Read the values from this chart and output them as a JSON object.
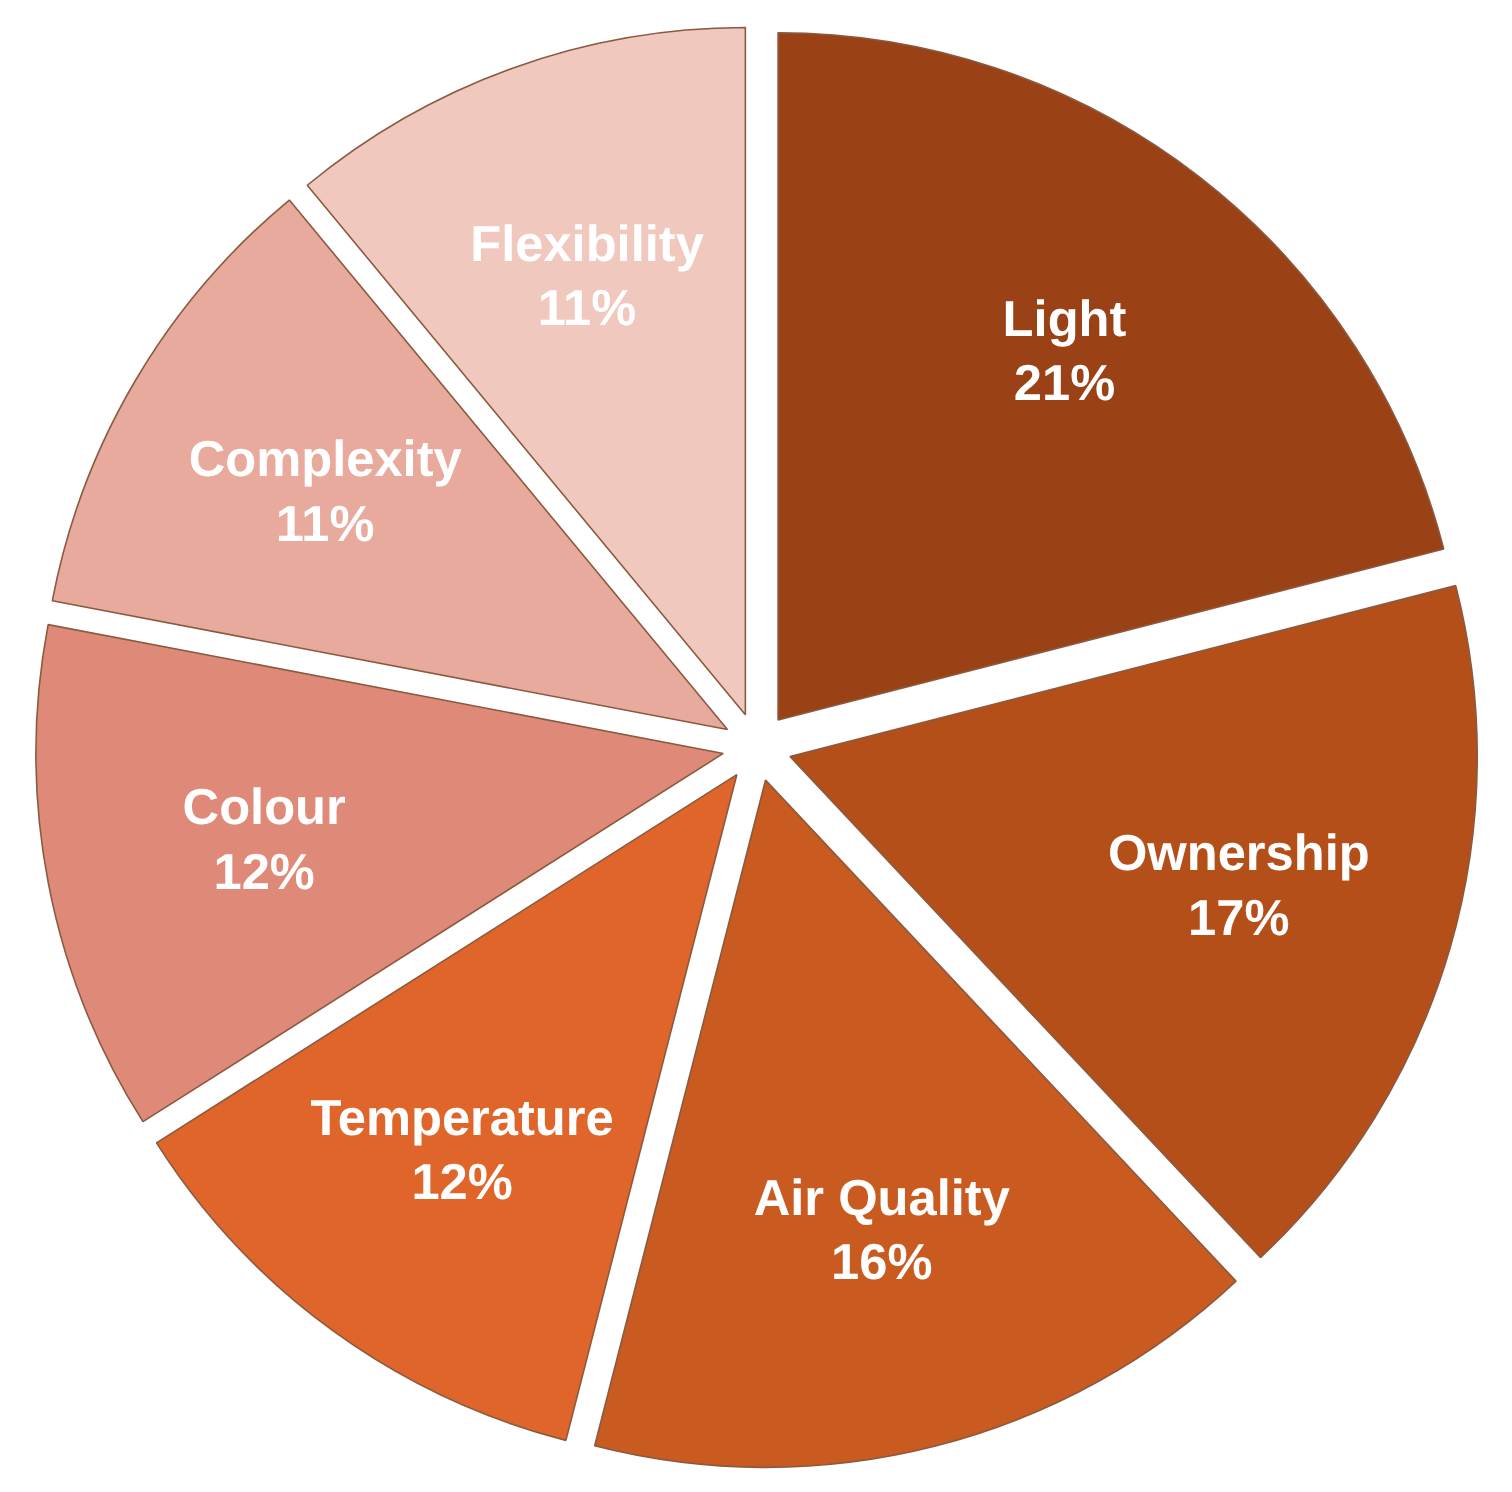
{
  "chart_data": {
    "type": "pie",
    "categories": [
      "Light",
      "Ownership",
      "Air Quality",
      "Temperature",
      "Colour",
      "Complexity",
      "Flexibility"
    ],
    "values": [
      21,
      17,
      16,
      12,
      12,
      11,
      11
    ],
    "value_labels": [
      "21%",
      "17%",
      "16%",
      "12%",
      "12%",
      "11%",
      "11%"
    ],
    "colors": [
      "#9a4116",
      "#b54f1a",
      "#c95a20",
      "#e0652a",
      "#df8a78",
      "#e8aa9c",
      "#f0c8bd"
    ],
    "legend": false
  }
}
